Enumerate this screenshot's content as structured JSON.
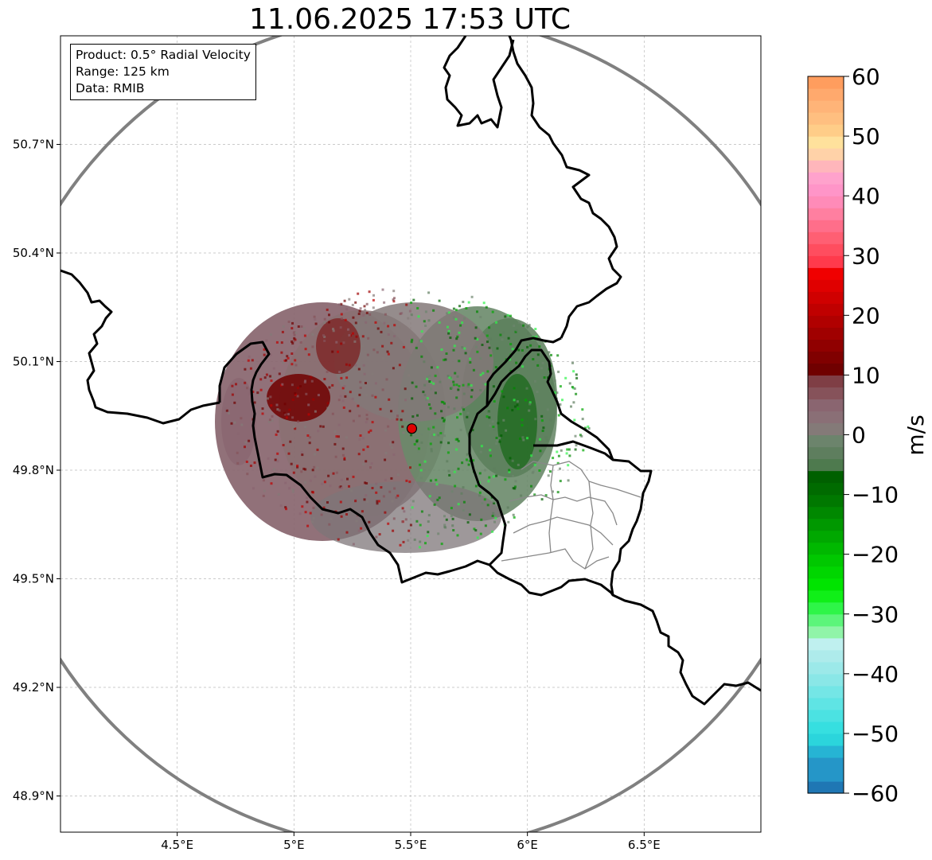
{
  "title": "11.06.2025 17:53 UTC",
  "info": {
    "product": "Product: 0.5° Radial Velocity",
    "range": "Range: 125 km",
    "data": "Data: RMIB"
  },
  "map": {
    "lon_range": [
      4.0,
      7.0
    ],
    "lat_range": [
      48.8,
      51.0
    ],
    "lon_ticks": [
      {
        "value": 4.5,
        "label": "4.5°E"
      },
      {
        "value": 5.0,
        "label": "5°E"
      },
      {
        "value": 5.5,
        "label": "5.5°E"
      },
      {
        "value": 6.0,
        "label": "6°E"
      },
      {
        "value": 6.5,
        "label": "6.5°E"
      }
    ],
    "lat_ticks": [
      {
        "value": 50.7,
        "label": "50.7°N"
      },
      {
        "value": 50.4,
        "label": "50.4°N"
      },
      {
        "value": 50.1,
        "label": "50.1°N"
      },
      {
        "value": 49.8,
        "label": "49.8°N"
      },
      {
        "value": 49.5,
        "label": "49.5°N"
      },
      {
        "value": 49.2,
        "label": "49.2°N"
      },
      {
        "value": 48.9,
        "label": "48.9°N"
      }
    ],
    "radar_site": {
      "lon": 5.505,
      "lat": 49.915
    },
    "range_ring_color": "#808080",
    "site_color": "#e00000"
  },
  "colorbar": {
    "label": "m/s",
    "range": [
      -60,
      60
    ],
    "ticks": [
      {
        "value": 60,
        "label": "60"
      },
      {
        "value": 50,
        "label": "50"
      },
      {
        "value": 40,
        "label": "40"
      },
      {
        "value": 30,
        "label": "30"
      },
      {
        "value": 20,
        "label": "20"
      },
      {
        "value": 10,
        "label": "10"
      },
      {
        "value": 0,
        "label": "0"
      },
      {
        "value": -10,
        "label": "−10"
      },
      {
        "value": -20,
        "label": "−20"
      },
      {
        "value": -30,
        "label": "−30"
      },
      {
        "value": -40,
        "label": "−40"
      },
      {
        "value": -50,
        "label": "−50"
      },
      {
        "value": -60,
        "label": "−60"
      }
    ],
    "stops": [
      {
        "from": -60,
        "to": -58,
        "color": "#1f77b4"
      },
      {
        "from": -58,
        "to": -54,
        "color": "#2596c8"
      },
      {
        "from": -54,
        "to": -52,
        "color": "#26b4d4"
      },
      {
        "from": -52,
        "to": -50,
        "color": "#2bd5dc"
      },
      {
        "from": -50,
        "to": -48,
        "color": "#36dfe0"
      },
      {
        "from": -48,
        "to": -46,
        "color": "#4be2e2"
      },
      {
        "from": -46,
        "to": -44,
        "color": "#5fe4e4"
      },
      {
        "from": -44,
        "to": -42,
        "color": "#74e6e6"
      },
      {
        "from": -42,
        "to": -40,
        "color": "#8ae7e7"
      },
      {
        "from": -40,
        "to": -38,
        "color": "#9ce9e9"
      },
      {
        "from": -38,
        "to": -36,
        "color": "#aeebeb"
      },
      {
        "from": -36,
        "to": -34,
        "color": "#bff0ef"
      },
      {
        "from": -34,
        "to": -32,
        "color": "#90f4a8"
      },
      {
        "from": -32,
        "to": -30,
        "color": "#5cf57a"
      },
      {
        "from": -30,
        "to": -28,
        "color": "#2ef548"
      },
      {
        "from": -28,
        "to": -26,
        "color": "#10ef18"
      },
      {
        "from": -26,
        "to": -24,
        "color": "#00e400"
      },
      {
        "from": -24,
        "to": -22,
        "color": "#00d600"
      },
      {
        "from": -22,
        "to": -20,
        "color": "#00c800"
      },
      {
        "from": -20,
        "to": -18,
        "color": "#00b800"
      },
      {
        "from": -18,
        "to": -16,
        "color": "#00a800"
      },
      {
        "from": -16,
        "to": -14,
        "color": "#009800"
      },
      {
        "from": -14,
        "to": -12,
        "color": "#008800"
      },
      {
        "from": -12,
        "to": -10,
        "color": "#007800"
      },
      {
        "from": -10,
        "to": -8,
        "color": "#006b00"
      },
      {
        "from": -8,
        "to": -6,
        "color": "#006000"
      },
      {
        "from": -6,
        "to": -4,
        "color": "#4e7a4e"
      },
      {
        "from": -4,
        "to": -2,
        "color": "#5e7e5e"
      },
      {
        "from": -2,
        "to": 0,
        "color": "#6c846c"
      },
      {
        "from": 0,
        "to": 2,
        "color": "#847a78"
      },
      {
        "from": 2,
        "to": 4,
        "color": "#8a6f76"
      },
      {
        "from": 4,
        "to": 6,
        "color": "#8a6570"
      },
      {
        "from": 6,
        "to": 8,
        "color": "#86525a"
      },
      {
        "from": 8,
        "to": 10,
        "color": "#7f3e45"
      },
      {
        "from": 10,
        "to": 12,
        "color": "#700000"
      },
      {
        "from": 12,
        "to": 14,
        "color": "#800000"
      },
      {
        "from": 14,
        "to": 16,
        "color": "#900000"
      },
      {
        "from": 16,
        "to": 18,
        "color": "#a00000"
      },
      {
        "from": 18,
        "to": 20,
        "color": "#b00000"
      },
      {
        "from": 20,
        "to": 22,
        "color": "#c00000"
      },
      {
        "from": 22,
        "to": 24,
        "color": "#d00000"
      },
      {
        "from": 24,
        "to": 26,
        "color": "#e00000"
      },
      {
        "from": 26,
        "to": 28,
        "color": "#f00000"
      },
      {
        "from": 28,
        "to": 30,
        "color": "#ff3a4c"
      },
      {
        "from": 30,
        "to": 32,
        "color": "#ff4d5f"
      },
      {
        "from": 32,
        "to": 34,
        "color": "#ff5f73"
      },
      {
        "from": 34,
        "to": 36,
        "color": "#ff6e8a"
      },
      {
        "from": 36,
        "to": 38,
        "color": "#ff7fa0"
      },
      {
        "from": 38,
        "to": 40,
        "color": "#ff8bb8"
      },
      {
        "from": 40,
        "to": 42,
        "color": "#ff95c8"
      },
      {
        "from": 42,
        "to": 44,
        "color": "#ffa2cc"
      },
      {
        "from": 44,
        "to": 46,
        "color": "#ffb6bb"
      },
      {
        "from": 46,
        "to": 48,
        "color": "#ffd2a8"
      },
      {
        "from": 48,
        "to": 50,
        "color": "#ffe19c"
      },
      {
        "from": 50,
        "to": 52,
        "color": "#ffcd88"
      },
      {
        "from": 52,
        "to": 54,
        "color": "#ffbf80"
      },
      {
        "from": 54,
        "to": 56,
        "color": "#ffb478"
      },
      {
        "from": 56,
        "to": 58,
        "color": "#ffa96d"
      },
      {
        "from": 58,
        "to": 60,
        "color": "#ff9d5e"
      }
    ]
  }
}
